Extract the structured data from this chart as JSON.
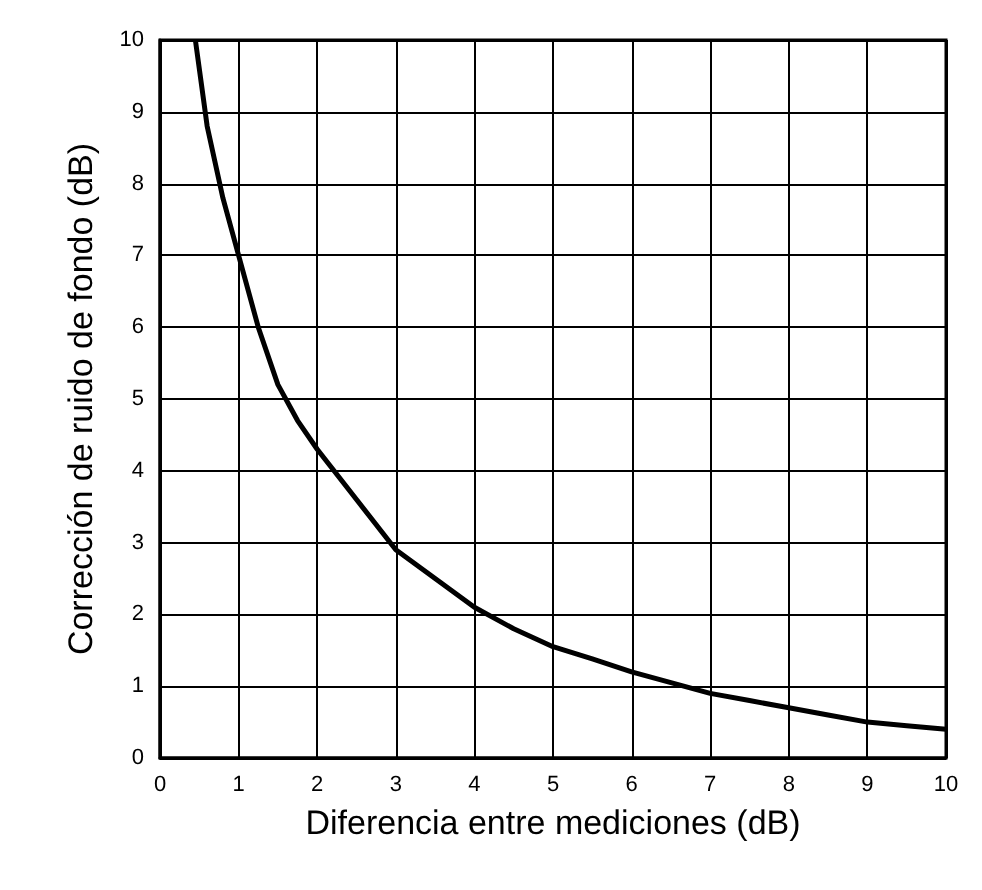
{
  "chart_data": {
    "type": "line",
    "xlabel": "Diferencia entre mediciones (dB)",
    "ylabel": "Corrección de ruido de fondo (dB)",
    "x": [
      0.45,
      0.6,
      0.8,
      1,
      1.25,
      1.5,
      1.75,
      2,
      2.5,
      3,
      3.5,
      4,
      4.5,
      5,
      5.5,
      6,
      6.5,
      7,
      7.5,
      8,
      8.5,
      9,
      9.5,
      10
    ],
    "series": [
      {
        "color": "#000000",
        "values": [
          10,
          8.8,
          7.8,
          7,
          6,
          5.2,
          4.7,
          4.3,
          3.6,
          2.9,
          2.5,
          2.1,
          1.8,
          1.55,
          1.38,
          1.2,
          1.05,
          0.9,
          0.8,
          0.7,
          0.6,
          0.5,
          0.45,
          0.4
        ]
      }
    ],
    "xlim": [
      0,
      10
    ],
    "ylim": [
      0,
      10
    ],
    "xticks": [
      0,
      1,
      2,
      3,
      4,
      5,
      6,
      7,
      8,
      9,
      10
    ],
    "yticks": [
      0,
      1,
      2,
      3,
      4,
      5,
      6,
      7,
      8,
      9,
      10
    ],
    "grid": true,
    "marker": "none",
    "line_style": "solid"
  }
}
